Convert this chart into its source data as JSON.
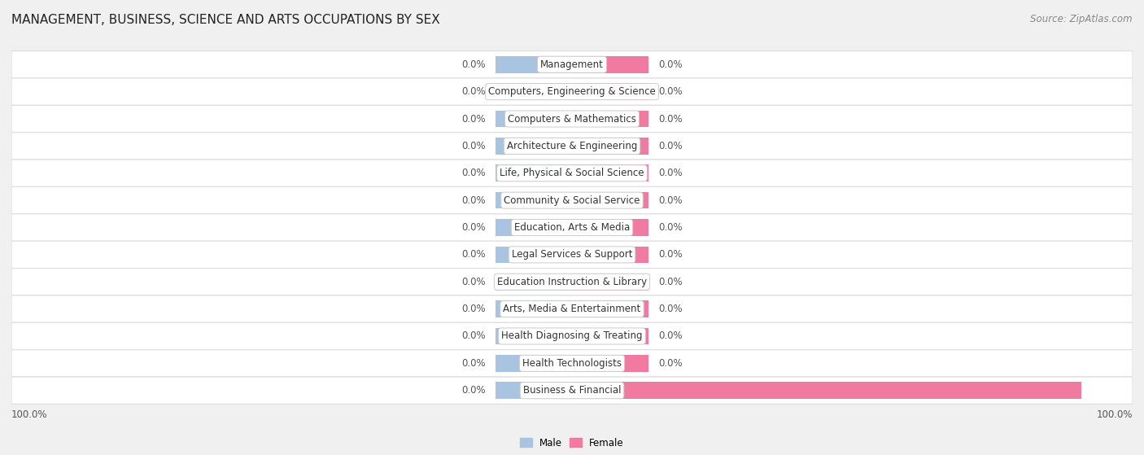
{
  "title": "MANAGEMENT, BUSINESS, SCIENCE AND ARTS OCCUPATIONS BY SEX",
  "source": "Source: ZipAtlas.com",
  "categories": [
    "Management",
    "Computers, Engineering & Science",
    "Computers & Mathematics",
    "Architecture & Engineering",
    "Life, Physical & Social Science",
    "Community & Social Service",
    "Education, Arts & Media",
    "Legal Services & Support",
    "Education Instruction & Library",
    "Arts, Media & Entertainment",
    "Health Diagnosing & Treating",
    "Health Technologists",
    "Business & Financial"
  ],
  "male_values": [
    0.0,
    0.0,
    0.0,
    0.0,
    0.0,
    0.0,
    0.0,
    0.0,
    0.0,
    0.0,
    0.0,
    0.0,
    0.0
  ],
  "female_values": [
    0.0,
    0.0,
    0.0,
    0.0,
    0.0,
    0.0,
    0.0,
    0.0,
    0.0,
    0.0,
    0.0,
    0.0,
    100.0
  ],
  "male_color": "#a8c4e0",
  "female_color": "#f07aa0",
  "male_label": "Male",
  "female_label": "Female",
  "bg_color": "#f0f0f0",
  "row_bg_color": "#ffffff",
  "row_sep_color": "#dddddd",
  "stub_size": 15,
  "xlim_left": -110,
  "xlim_right": 110,
  "title_fontsize": 11,
  "source_fontsize": 8.5,
  "label_fontsize": 8.5,
  "bar_label_fontsize": 8.5,
  "cat_label_fontsize": 8.5
}
